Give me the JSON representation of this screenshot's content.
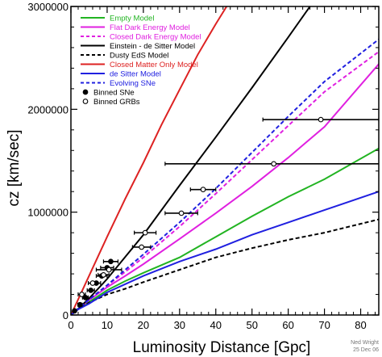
{
  "chart_data": {
    "type": "line",
    "xlabel": "Luminosity Distance [Gpc]",
    "ylabel": "cz [km/sec]",
    "xlim": [
      0,
      85
    ],
    "ylim": [
      0,
      3000000
    ],
    "x_ticks": [
      "0",
      "10",
      "20",
      "30",
      "40",
      "50",
      "60",
      "70",
      "80"
    ],
    "y_ticks": [
      "0",
      "1000000",
      "2000000",
      "3000000"
    ],
    "credit": [
      "Ned Wright",
      "25 Dec 06"
    ],
    "legend_position": "top-left",
    "series": [
      {
        "name": "Empty Model",
        "color": "#22b422",
        "dash": "solid",
        "x": [
          0,
          2,
          5,
          10,
          15,
          20,
          30,
          40,
          50,
          60,
          70,
          85
        ],
        "y": [
          0,
          58000,
          126000,
          240000,
          330000,
          410000,
          560000,
          760000,
          960000,
          1150000,
          1320000,
          1620000
        ]
      },
      {
        "name": "Flat Dark Energy Model",
        "color": "#e020e0",
        "dash": "solid",
        "x": [
          0,
          2,
          5,
          10,
          15,
          20,
          30,
          40,
          50,
          60,
          70,
          85
        ],
        "y": [
          0,
          60000,
          145000,
          270000,
          380000,
          495000,
          740000,
          990000,
          1250000,
          1530000,
          1830000,
          2440000
        ]
      },
      {
        "name": "Closed Dark Energy Model",
        "color": "#e020e0",
        "dash": "dashed",
        "x": [
          0,
          2,
          5,
          10,
          15,
          20,
          30,
          40,
          50,
          60,
          70,
          85
        ],
        "y": [
          0,
          61000,
          150000,
          285000,
          420000,
          560000,
          860000,
          1180000,
          1510000,
          1840000,
          2170000,
          2560000
        ]
      },
      {
        "name": "Einstein - de Sitter Model",
        "color": "#000000",
        "dash": "solid",
        "x": [
          0,
          2,
          5,
          10,
          20,
          30,
          40,
          50,
          60,
          66
        ],
        "y": [
          0,
          62000,
          160000,
          350000,
          780000,
          1260000,
          1730000,
          2210000,
          2700000,
          3000000
        ]
      },
      {
        "name": "Dusty EdS Model",
        "color": "#000000",
        "dash": "dashed",
        "x": [
          0,
          2,
          5,
          10,
          15,
          20,
          30,
          40,
          50,
          60,
          70,
          85
        ],
        "y": [
          0,
          56000,
          120000,
          200000,
          255000,
          320000,
          440000,
          560000,
          650000,
          730000,
          800000,
          930000
        ]
      },
      {
        "name": "Closed Matter Only Model",
        "color": "#dd2222",
        "dash": "solid",
        "x": [
          0,
          5,
          10,
          15,
          20,
          25,
          30,
          35,
          40,
          43
        ],
        "y": [
          0,
          380000,
          760000,
          1130000,
          1480000,
          1850000,
          2190000,
          2530000,
          2830000,
          3000000
        ]
      },
      {
        "name": "de Sitter Model",
        "color": "#2020e0",
        "dash": "solid",
        "x": [
          0,
          2,
          5,
          10,
          15,
          20,
          30,
          40,
          50,
          60,
          70,
          85
        ],
        "y": [
          0,
          55000,
          110000,
          220000,
          300000,
          380000,
          520000,
          640000,
          780000,
          900000,
          1020000,
          1200000
        ]
      },
      {
        "name": "Evolving SNe",
        "color": "#2020e0",
        "dash": "dashed",
        "x": [
          0,
          2,
          5,
          10,
          15,
          20,
          30,
          40,
          50,
          60,
          70,
          85
        ],
        "y": [
          0,
          61000,
          150000,
          290000,
          440000,
          590000,
          900000,
          1230000,
          1580000,
          1930000,
          2270000,
          2680000
        ]
      }
    ],
    "markers": [
      {
        "name": "Binned SNe",
        "fill": "#000000",
        "points": [
          {
            "x": 1.0,
            "y": 40000,
            "xerr": 0.3
          },
          {
            "x": 2.5,
            "y": 100000,
            "xerr": 0.6
          },
          {
            "x": 4.0,
            "y": 170000,
            "xerr": 0.8
          },
          {
            "x": 5.5,
            "y": 240000,
            "xerr": 1.0
          },
          {
            "x": 7.0,
            "y": 310000,
            "xerr": 1.2
          },
          {
            "x": 8.5,
            "y": 380000,
            "xerr": 1.5
          },
          {
            "x": 10.0,
            "y": 460000,
            "xerr": 1.8
          },
          {
            "x": 11.0,
            "y": 520000,
            "xerr": 2.0
          }
        ]
      },
      {
        "name": "Binned GRBs",
        "fill": "#ffffff",
        "points": [
          {
            "x": 3.0,
            "y": 200000,
            "xerr": 1.0
          },
          {
            "x": 6.0,
            "y": 310000,
            "xerr": 1.2
          },
          {
            "x": 9.0,
            "y": 390000,
            "xerr": 1.5
          },
          {
            "x": 10.5,
            "y": 440000,
            "xerr": 3.5
          },
          {
            "x": 19.5,
            "y": 660000,
            "xerr": 2.5
          },
          {
            "x": 20.5,
            "y": 800000,
            "xerr": 3.0
          },
          {
            "x": 30.5,
            "y": 990000,
            "xerr": 4.5
          },
          {
            "x": 36.5,
            "y": 1220000,
            "xerr": 3.5
          },
          {
            "x": 56.0,
            "y": 1470000,
            "xerr": 30.0
          },
          {
            "x": 69.0,
            "y": 1900000,
            "xerr": 16.0
          }
        ]
      }
    ]
  }
}
